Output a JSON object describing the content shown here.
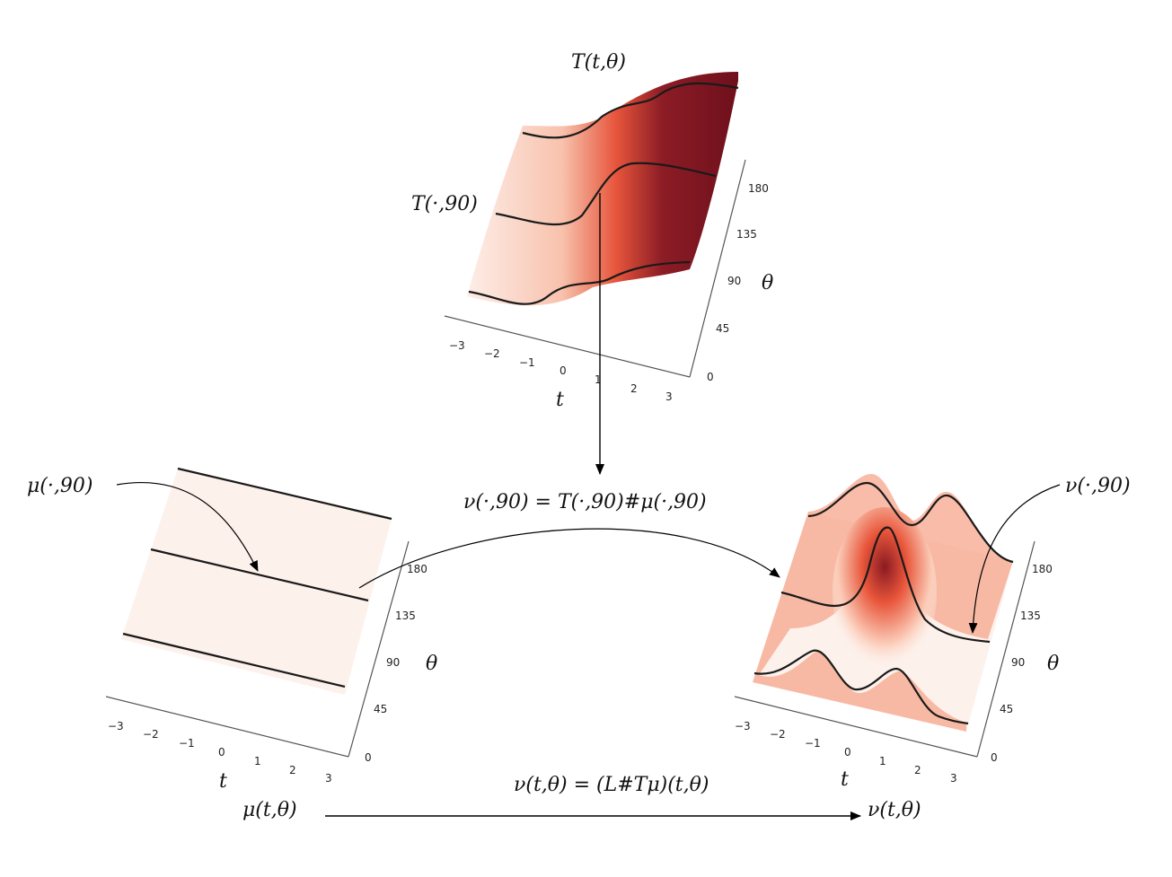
{
  "labels": {
    "top_title": "T(t,θ)",
    "top_slice": "T(·,90)",
    "left_slice": "μ(·,90)",
    "right_slice": "ν(·,90)",
    "slice_equation": "ν(·,90) = T(·,90)#μ(·,90)",
    "full_equation": "ν(t,θ) = (L#Tμ)(t,θ)",
    "left_bottom": "μ(t,θ)",
    "right_bottom": "ν(t,θ)"
  },
  "axes": {
    "t_label": "t",
    "theta_label": "θ",
    "t_ticks": [
      "−3",
      "−2",
      "−1",
      "0",
      "1",
      "2",
      "3"
    ],
    "theta_ticks": [
      "0",
      "45",
      "90",
      "135",
      "180"
    ]
  },
  "colors": {
    "surface_light": "#fdf1ec",
    "surface_mid": "#ef5a3c",
    "surface_dark": "#7a1220",
    "curve": "#1a1a1a",
    "axis": "#555555"
  }
}
